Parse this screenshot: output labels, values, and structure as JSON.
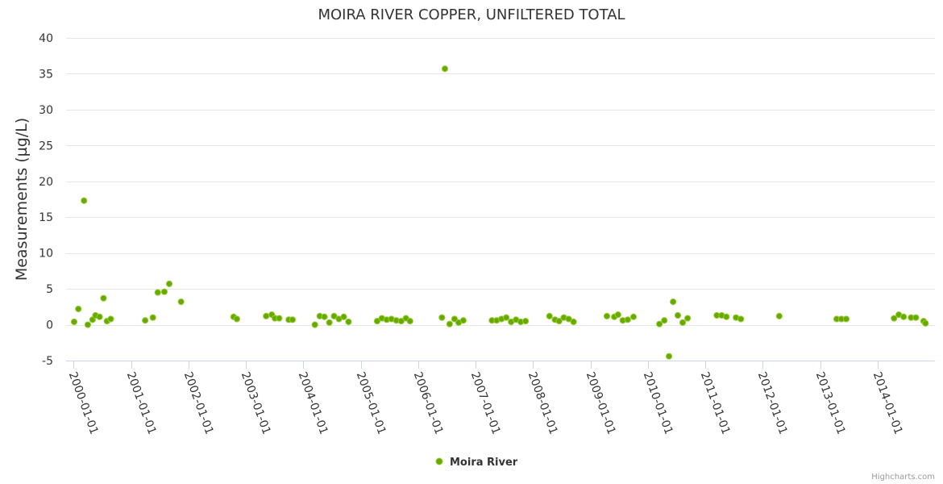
{
  "chart_data": {
    "type": "scatter",
    "title": "MOIRA RIVER COPPER, UNFILTERED TOTAL",
    "xlabel": "",
    "ylabel": "Measurements (µg/L)",
    "ylim": [
      -5,
      40
    ],
    "yticks": [
      -5,
      0,
      5,
      10,
      15,
      20,
      25,
      30,
      35,
      40
    ],
    "xlim": [
      "1999-11-15",
      "2014-12-31"
    ],
    "xticks": [
      "2000-01-01",
      "2001-01-01",
      "2002-01-01",
      "2003-01-01",
      "2004-01-01",
      "2005-01-01",
      "2006-01-01",
      "2007-01-01",
      "2008-01-01",
      "2009-01-01",
      "2010-01-01",
      "2011-01-01",
      "2012-01-01",
      "2013-01-01",
      "2014-01-01"
    ],
    "grid": true,
    "legend": "bottom-center",
    "color": "#66aa00",
    "series": [
      {
        "name": "Moira River",
        "points": [
          [
            "2000-01-05",
            0.4
          ],
          [
            "2000-02-01",
            2.2
          ],
          [
            "2000-03-08",
            17.3
          ],
          [
            "2000-04-01",
            0.0
          ],
          [
            "2000-05-01",
            0.7
          ],
          [
            "2000-05-20",
            1.3
          ],
          [
            "2000-06-15",
            1.1
          ],
          [
            "2000-07-10",
            3.7
          ],
          [
            "2000-08-01",
            0.5
          ],
          [
            "2000-08-25",
            0.8
          ],
          [
            "2001-04-01",
            0.6
          ],
          [
            "2001-05-20",
            1.0
          ],
          [
            "2001-06-20",
            4.5
          ],
          [
            "2001-08-01",
            4.6
          ],
          [
            "2001-09-01",
            5.7
          ],
          [
            "2001-11-15",
            3.2
          ],
          [
            "2002-10-15",
            1.1
          ],
          [
            "2002-11-05",
            0.8
          ],
          [
            "2003-05-10",
            1.2
          ],
          [
            "2003-06-15",
            1.4
          ],
          [
            "2003-07-05",
            0.9
          ],
          [
            "2003-08-01",
            0.9
          ],
          [
            "2003-10-01",
            0.7
          ],
          [
            "2003-10-25",
            0.7
          ],
          [
            "2004-03-15",
            0.0
          ],
          [
            "2004-04-15",
            1.2
          ],
          [
            "2004-05-15",
            1.1
          ],
          [
            "2004-06-15",
            0.3
          ],
          [
            "2004-07-15",
            1.2
          ],
          [
            "2004-08-15",
            0.8
          ],
          [
            "2004-09-15",
            1.1
          ],
          [
            "2004-10-15",
            0.4
          ],
          [
            "2005-04-15",
            0.5
          ],
          [
            "2005-05-15",
            0.9
          ],
          [
            "2005-06-15",
            0.7
          ],
          [
            "2005-07-15",
            0.8
          ],
          [
            "2005-08-15",
            0.6
          ],
          [
            "2005-09-15",
            0.5
          ],
          [
            "2005-10-15",
            0.9
          ],
          [
            "2005-11-10",
            0.5
          ],
          [
            "2006-06-01",
            1.0
          ],
          [
            "2006-06-20",
            35.7
          ],
          [
            "2006-07-20",
            0.1
          ],
          [
            "2006-08-20",
            0.8
          ],
          [
            "2006-09-15",
            0.3
          ],
          [
            "2006-10-15",
            0.6
          ],
          [
            "2007-04-15",
            0.6
          ],
          [
            "2007-05-15",
            0.6
          ],
          [
            "2007-06-15",
            0.8
          ],
          [
            "2007-07-15",
            1.0
          ],
          [
            "2007-08-15",
            0.4
          ],
          [
            "2007-09-15",
            0.7
          ],
          [
            "2007-10-15",
            0.4
          ],
          [
            "2007-11-15",
            0.5
          ],
          [
            "2008-04-15",
            1.2
          ],
          [
            "2008-05-20",
            0.7
          ],
          [
            "2008-06-15",
            0.5
          ],
          [
            "2008-07-15",
            1.0
          ],
          [
            "2008-08-15",
            0.8
          ],
          [
            "2008-09-15",
            0.4
          ],
          [
            "2009-04-15",
            1.2
          ],
          [
            "2009-06-01",
            1.1
          ],
          [
            "2009-06-25",
            1.4
          ],
          [
            "2009-07-25",
            0.6
          ],
          [
            "2009-08-25",
            0.7
          ],
          [
            "2009-10-01",
            1.1
          ],
          [
            "2010-03-15",
            0.1
          ],
          [
            "2010-04-15",
            0.6
          ],
          [
            "2010-05-15",
            -4.4
          ],
          [
            "2010-06-10",
            3.2
          ],
          [
            "2010-07-10",
            1.3
          ],
          [
            "2010-08-10",
            0.3
          ],
          [
            "2010-09-10",
            0.9
          ],
          [
            "2011-03-15",
            1.3
          ],
          [
            "2011-04-15",
            1.3
          ],
          [
            "2011-05-15",
            1.1
          ],
          [
            "2011-07-15",
            1.0
          ],
          [
            "2011-08-15",
            0.8
          ],
          [
            "2012-04-15",
            1.2
          ],
          [
            "2013-04-15",
            0.8
          ],
          [
            "2013-05-15",
            0.8
          ],
          [
            "2013-06-15",
            0.8
          ],
          [
            "2014-04-15",
            0.9
          ],
          [
            "2014-05-15",
            1.4
          ],
          [
            "2014-06-15",
            1.1
          ],
          [
            "2014-08-01",
            1.0
          ],
          [
            "2014-09-01",
            1.0
          ],
          [
            "2014-10-20",
            0.5
          ],
          [
            "2014-11-01",
            0.2
          ]
        ]
      }
    ]
  },
  "credits": "Highcharts.com"
}
